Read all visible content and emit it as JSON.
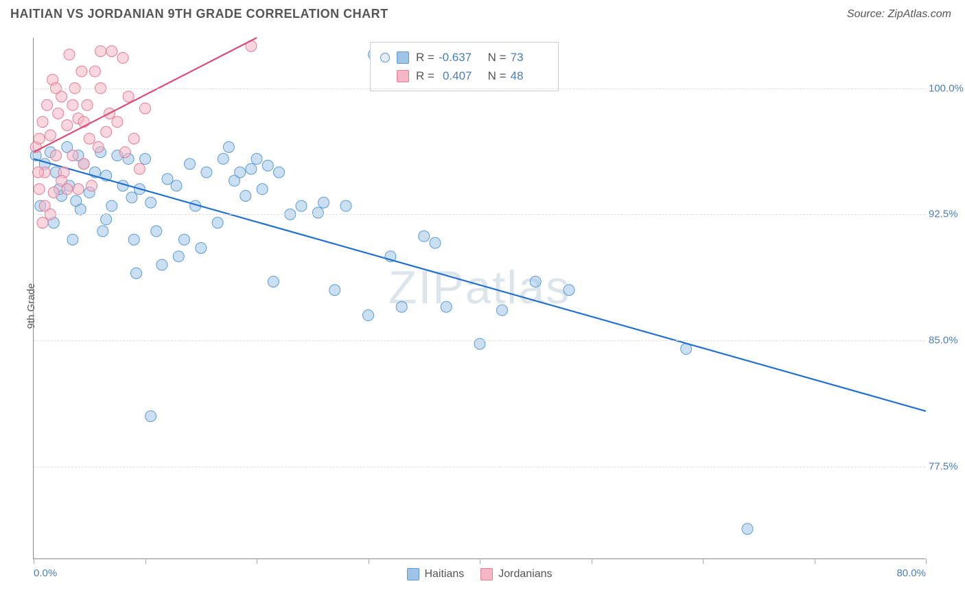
{
  "title": "HAITIAN VS JORDANIAN 9TH GRADE CORRELATION CHART",
  "source": "Source: ZipAtlas.com",
  "watermark": "ZIPatlas",
  "chart": {
    "type": "scatter",
    "ylabel": "9th Grade",
    "xlim": [
      0,
      80
    ],
    "ylim": [
      72,
      103
    ],
    "x_ticks": [
      0,
      10,
      20,
      30,
      40,
      50,
      60,
      70,
      80
    ],
    "x_tick_labels_shown": {
      "0": "0.0%",
      "80": "80.0%"
    },
    "y_ticks": [
      77.5,
      85.0,
      92.5,
      100.0
    ],
    "y_tick_labels": [
      "77.5%",
      "85.0%",
      "92.5%",
      "100.0%"
    ],
    "background_color": "#ffffff",
    "grid_color": "#dddddd",
    "axis_color": "#888888",
    "marker_radius": 8,
    "marker_opacity": 0.55,
    "series": [
      {
        "name": "Haitians",
        "color_fill": "#9ec5e8",
        "color_stroke": "#5a9bd5",
        "R": "-0.637",
        "N": "73",
        "trend": {
          "x1": 0,
          "y1": 95.8,
          "x2": 80,
          "y2": 80.8,
          "color": "#1f6fd4",
          "width": 2.2
        },
        "points": [
          [
            0.2,
            96.0
          ],
          [
            0.6,
            93.0
          ],
          [
            1.0,
            95.5
          ],
          [
            1.5,
            96.2
          ],
          [
            1.8,
            92.0
          ],
          [
            2.0,
            95.0
          ],
          [
            2.5,
            93.6
          ],
          [
            3.0,
            96.5
          ],
          [
            3.2,
            94.2
          ],
          [
            3.5,
            91.0
          ],
          [
            4.0,
            96.0
          ],
          [
            4.2,
            92.8
          ],
          [
            4.5,
            95.5
          ],
          [
            5.0,
            93.8
          ],
          [
            5.5,
            95.0
          ],
          [
            6.0,
            96.2
          ],
          [
            6.2,
            91.5
          ],
          [
            6.5,
            94.8
          ],
          [
            7.0,
            93.0
          ],
          [
            7.5,
            96.0
          ],
          [
            8.0,
            94.2
          ],
          [
            8.5,
            95.8
          ],
          [
            9.0,
            91.0
          ],
          [
            9.2,
            89.0
          ],
          [
            9.5,
            94.0
          ],
          [
            10.0,
            95.8
          ],
          [
            10.5,
            93.2
          ],
          [
            11.0,
            91.5
          ],
          [
            11.5,
            89.5
          ],
          [
            12.0,
            94.6
          ],
          [
            12.8,
            94.2
          ],
          [
            13.5,
            91.0
          ],
          [
            14.0,
            95.5
          ],
          [
            14.5,
            93.0
          ],
          [
            15.0,
            90.5
          ],
          [
            15.5,
            95.0
          ],
          [
            16.5,
            92.0
          ],
          [
            17.0,
            95.8
          ],
          [
            17.5,
            96.5
          ],
          [
            18.0,
            94.5
          ],
          [
            18.5,
            95.0
          ],
          [
            19.0,
            93.6
          ],
          [
            19.5,
            95.2
          ],
          [
            20.0,
            95.8
          ],
          [
            20.5,
            94.0
          ],
          [
            21.0,
            95.4
          ],
          [
            21.5,
            88.5
          ],
          [
            22.0,
            95.0
          ],
          [
            23.0,
            92.5
          ],
          [
            24.0,
            93.0
          ],
          [
            26.0,
            93.2
          ],
          [
            27.0,
            88.0
          ],
          [
            28.0,
            93.0
          ],
          [
            30.0,
            86.5
          ],
          [
            30.5,
            102.0
          ],
          [
            32.0,
            90.0
          ],
          [
            33.0,
            87.0
          ],
          [
            35.0,
            91.2
          ],
          [
            36.0,
            90.8
          ],
          [
            37.0,
            87.0
          ],
          [
            40.0,
            84.8
          ],
          [
            42.0,
            86.8
          ],
          [
            45.0,
            88.5
          ],
          [
            48.0,
            88.0
          ],
          [
            58.5,
            84.5
          ],
          [
            64.0,
            73.8
          ],
          [
            10.5,
            80.5
          ],
          [
            6.5,
            92.2
          ],
          [
            2.3,
            94.0
          ],
          [
            3.8,
            93.3
          ],
          [
            13.0,
            90.0
          ],
          [
            8.8,
            93.5
          ],
          [
            25.5,
            92.6
          ]
        ]
      },
      {
        "name": "Jordanians",
        "color_fill": "#f5b6c5",
        "color_stroke": "#e77a95",
        "R": "0.407",
        "N": "48",
        "trend": {
          "x1": 0,
          "y1": 96.2,
          "x2": 20,
          "y2": 103.0,
          "color": "#d94a74",
          "width": 2.2
        },
        "points": [
          [
            0.2,
            96.5
          ],
          [
            0.5,
            97.0
          ],
          [
            0.8,
            98.0
          ],
          [
            1.0,
            95.0
          ],
          [
            1.2,
            99.0
          ],
          [
            1.5,
            97.2
          ],
          [
            1.7,
            100.5
          ],
          [
            2.0,
            96.0
          ],
          [
            2.2,
            98.5
          ],
          [
            2.5,
            99.5
          ],
          [
            2.7,
            95.0
          ],
          [
            3.0,
            97.8
          ],
          [
            3.2,
            102.0
          ],
          [
            3.5,
            96.0
          ],
          [
            3.7,
            100.0
          ],
          [
            4.0,
            98.2
          ],
          [
            4.3,
            101.0
          ],
          [
            4.5,
            95.5
          ],
          [
            4.8,
            99.0
          ],
          [
            5.0,
            97.0
          ],
          [
            5.5,
            101.0
          ],
          [
            5.8,
            96.5
          ],
          [
            6.0,
            100.0
          ],
          [
            6.5,
            97.4
          ],
          [
            7.0,
            102.2
          ],
          [
            7.5,
            98.0
          ],
          [
            8.0,
            101.8
          ],
          [
            8.2,
            96.2
          ],
          [
            8.5,
            99.5
          ],
          [
            9.0,
            97.0
          ],
          [
            9.5,
            95.2
          ],
          [
            10.0,
            98.8
          ],
          [
            1.0,
            93.0
          ],
          [
            1.8,
            93.8
          ],
          [
            2.5,
            94.5
          ],
          [
            0.4,
            95.0
          ],
          [
            3.0,
            94.0
          ],
          [
            0.5,
            94.0
          ],
          [
            4.0,
            94.0
          ],
          [
            1.5,
            92.5
          ],
          [
            6.0,
            102.2
          ],
          [
            3.5,
            99.0
          ],
          [
            2.0,
            100.0
          ],
          [
            4.5,
            98.0
          ],
          [
            5.2,
            94.2
          ],
          [
            0.8,
            92.0
          ],
          [
            6.8,
            98.5
          ],
          [
            19.5,
            102.5
          ]
        ]
      }
    ],
    "legend": {
      "R_label": "R =",
      "N_label": "N =",
      "text_color": "#555555",
      "value_color": "#4a7ebb"
    },
    "bottom_legend_labels": [
      "Haitians",
      "Jordanians"
    ]
  }
}
